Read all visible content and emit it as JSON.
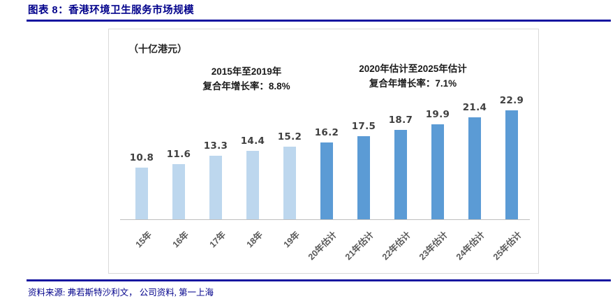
{
  "header": {
    "figure_title": "图表 8：香港环境卫生服务市场规模"
  },
  "chart": {
    "unit_label": "（十亿港元）",
    "annotation_historical_line1": "2015年至2019年",
    "annotation_historical_line2": "复合年增长率：8.8%",
    "annotation_estimated_line1": "2020年估计至2025年估计",
    "annotation_estimated_line2": "复合年增长率：7.1%"
  },
  "chart_data": {
    "type": "bar",
    "title": "香港环境卫生服务市场规模",
    "unit": "十亿港元",
    "categories": [
      "15年",
      "16年",
      "17年",
      "18年",
      "19年",
      "20年估计",
      "21年估计",
      "22年估计",
      "23年估计",
      "24年估计",
      "25年估计"
    ],
    "values": [
      10.8,
      11.6,
      13.3,
      14.4,
      15.2,
      16.2,
      17.5,
      18.7,
      19.9,
      21.4,
      22.9
    ],
    "estimated_from_index": 5,
    "colors": {
      "historical_bar": "#BDD7EE",
      "estimated_bar": "#5B9BD5",
      "value_label": "#404040",
      "tick_label": "#595959",
      "axis_line": "#BFBFBF",
      "accent_navy": "#00008B"
    },
    "annotations": [
      {
        "text": "2015年至2019年 复合年增长率：8.8%",
        "applies_to": "2015-2019"
      },
      {
        "text": "2020年估计至2025年估计 复合年增长率：7.1%",
        "applies_to": "2020E-2025E"
      }
    ],
    "ylim": [
      0,
      25
    ],
    "grid": false,
    "legend": false,
    "data_labels": true
  },
  "footer": {
    "source_text": "资料来源: 弗若斯特沙利文， 公司资料, 第一上海"
  }
}
